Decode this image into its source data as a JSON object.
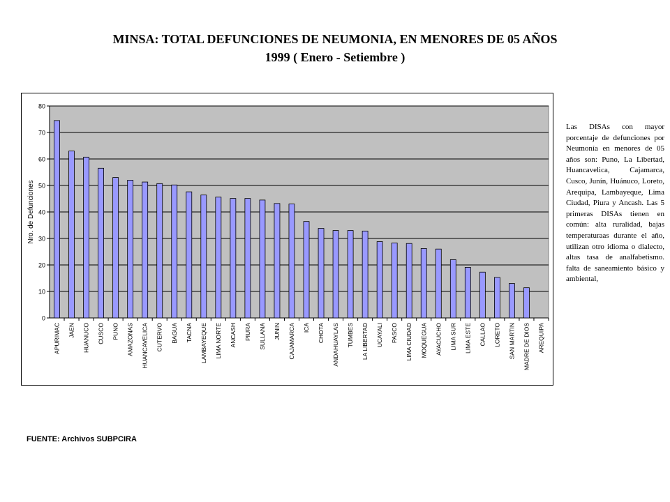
{
  "title": {
    "line1": "MINSA: TOTAL DEFUNCIONES DE NEUMONIA, EN MENORES DE 05 AÑOS",
    "line2": "1999 ( Enero - Setiembre )"
  },
  "note": "Las DISAs con mayor porcentaje de defunciones por Neumonía en menores de 05 años son: Puno, La Libertad, Huancavelica, Cajamarca, Cusco, Junín, Huánuco, Loreto, Arequipa, Lambayeque, Lima Ciudad, Piura y Ancash. Las 5 primeras DISAs tienen en común: alta ruralidad, bajas temperaturaas durante el año, utilizan otro idioma o dialecto, altas tasa de analfabetismo. falta de saneamiento básico y ambiental,",
  "source": "FUENTE: Archivos SUBPCIRA",
  "colors": {
    "plot_bg": "#c0c0c0",
    "bar_fill": "#9999ff",
    "bar_stroke": "#000000",
    "grid": "#000000"
  },
  "chart_data": {
    "type": "bar",
    "ylabel": "Nro. de Defunciones",
    "xlabel": "",
    "ylim": [
      0,
      80
    ],
    "yticks": [
      0,
      10,
      20,
      30,
      40,
      50,
      60,
      70,
      80
    ],
    "grid": true,
    "categories": [
      "APURIMAC",
      "JAEN",
      "HUANUCO",
      "CUSCO",
      "PUNO",
      "AMAZONAS",
      "HUANCAVELICA",
      "CUTERVO",
      "BAGUA",
      "TACNA",
      "LAMBAYEQUE",
      "LIMA NORTE",
      "ANCASH",
      "PIURA",
      "SULLANA",
      "JUNIN",
      "CAJAMARCA",
      "ICA",
      "CHOTA",
      "ANDAHUAYLAS",
      "TUMBES",
      "LA LIBERTAD",
      "UCAYALI",
      "PASCO",
      "LIMA CIUDAD",
      "MOQUEGUA",
      "AYACUCHO",
      "LIMA SUR",
      "LIMA ESTE",
      "CALLAO",
      "LORETO",
      "SAN MARTIN",
      "MADRE DE DIOS",
      "AREQUIPA"
    ],
    "values": [
      74.5,
      63,
      60.7,
      56.5,
      53,
      52,
      51.3,
      50.7,
      50.2,
      47.6,
      46.4,
      45.6,
      45.1,
      45.1,
      44.5,
      43.2,
      43,
      36.4,
      33.8,
      33,
      33,
      32.8,
      28.8,
      28.3,
      28.1,
      26.2,
      26,
      22,
      19.1,
      17.3,
      15.3,
      13,
      11.4,
      0
    ]
  }
}
